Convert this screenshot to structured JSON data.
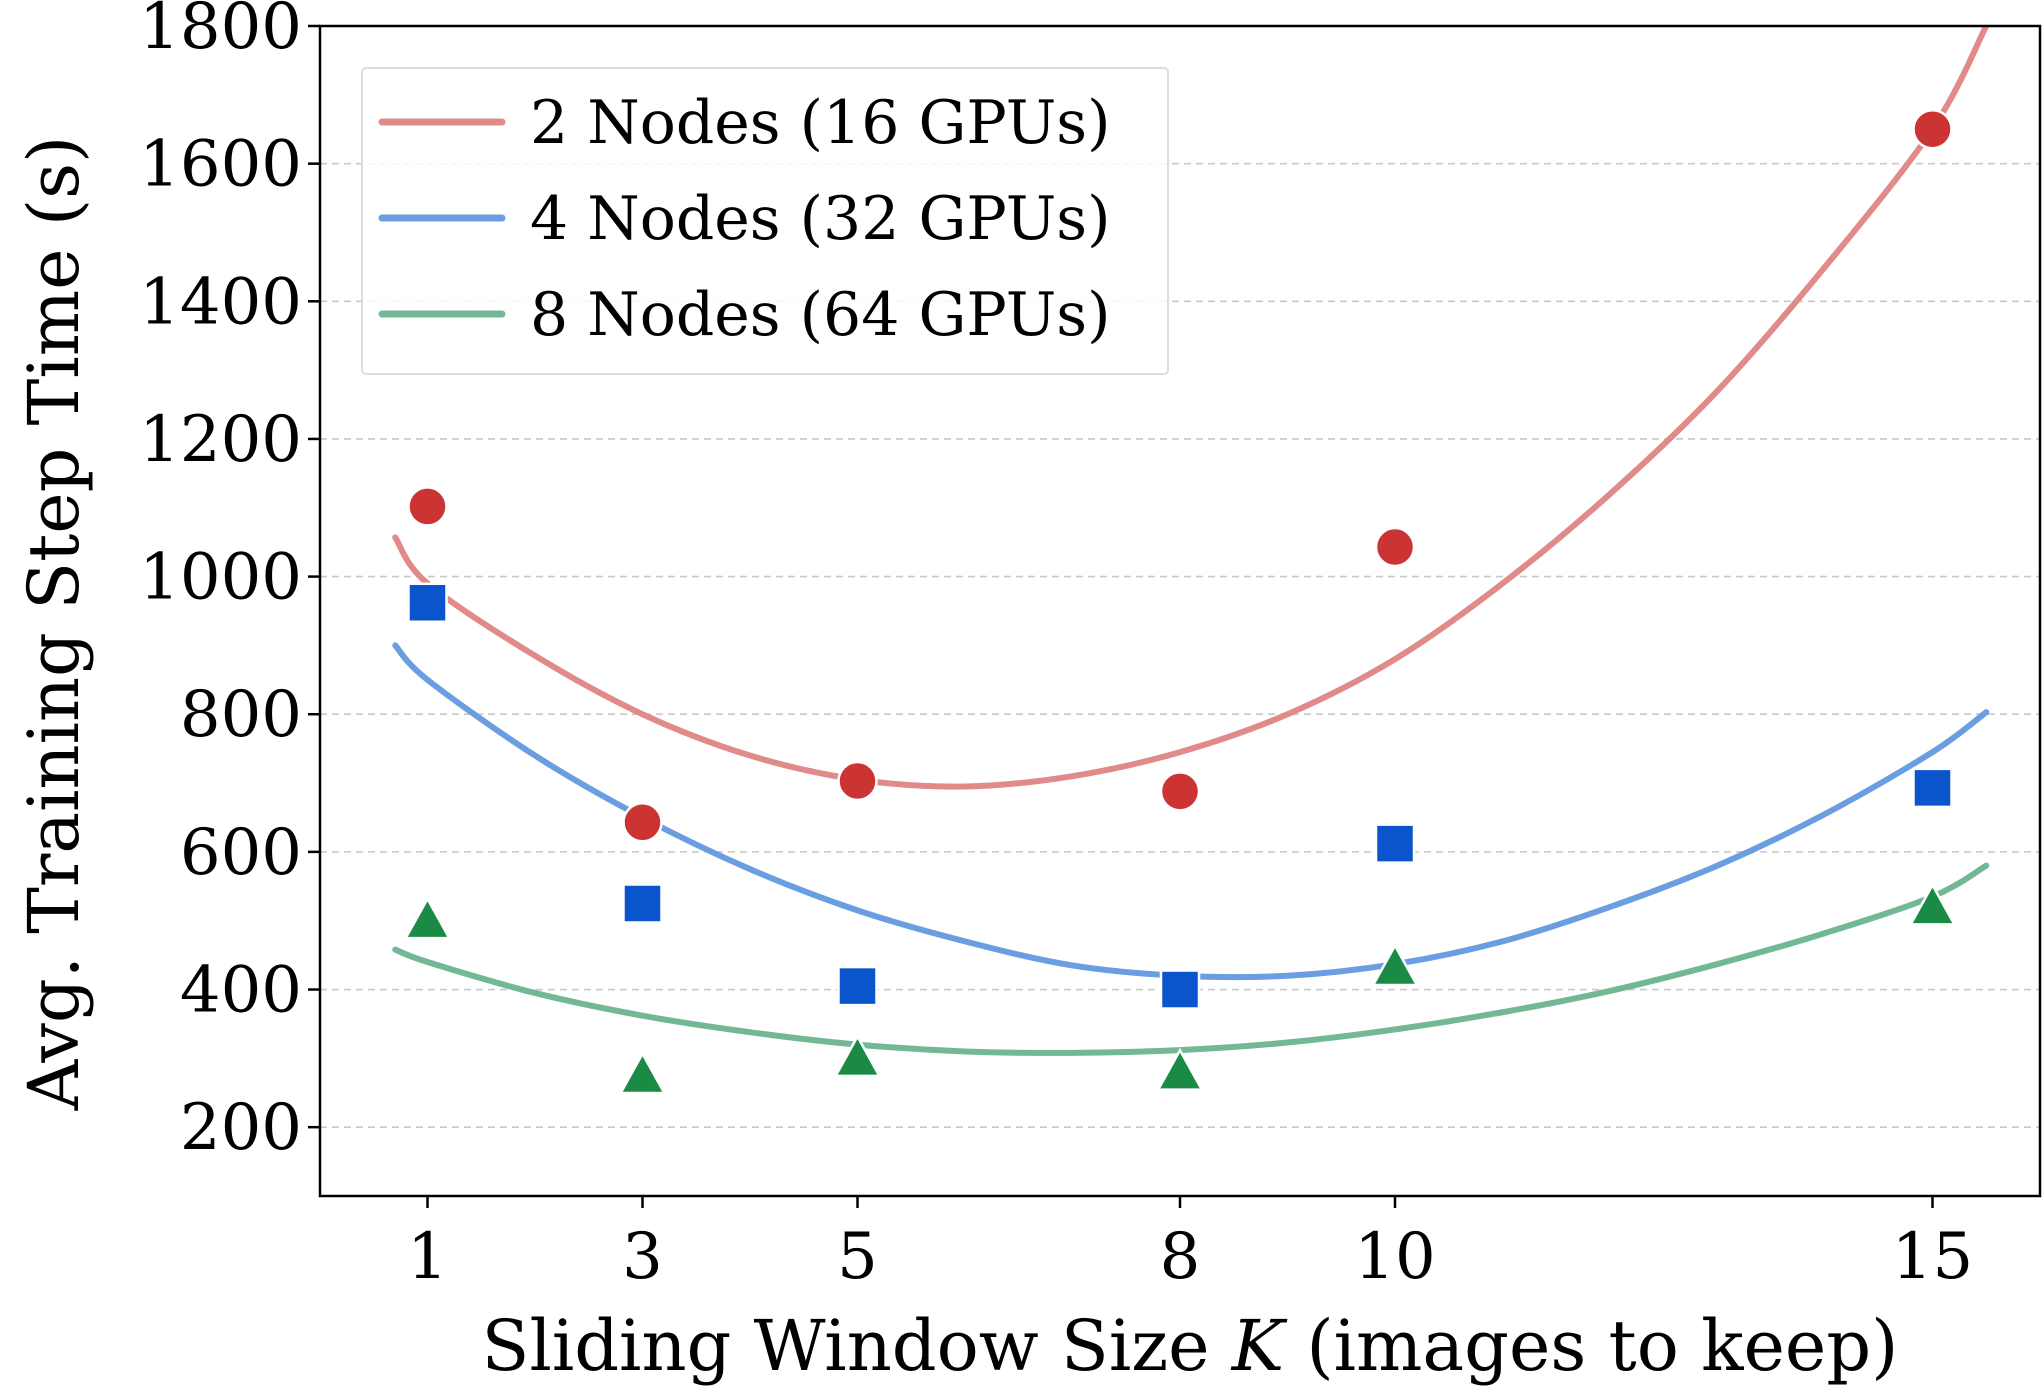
{
  "chart_data": {
    "type": "scatter",
    "xlabel_prefix": "Sliding Window Size ",
    "xlabel_var": "K",
    "xlabel_suffix": " (images to keep)",
    "ylabel": "Avg. Training Step Time (s)",
    "x_ticks": [
      1,
      3,
      5,
      8,
      10,
      15
    ],
    "x_tick_labels": [
      "1",
      "3",
      "5",
      "8",
      "10",
      "15"
    ],
    "y_ticks": [
      200,
      400,
      600,
      800,
      1000,
      1200,
      1400,
      1600,
      1800
    ],
    "y_tick_labels": [
      "200",
      "400",
      "600",
      "800",
      "1000",
      "1200",
      "1400",
      "1600",
      "1800"
    ],
    "xlim": [
      0,
      16
    ],
    "ylim": [
      100,
      1800
    ],
    "grid": "horizontal dashed",
    "legend_position": "top-left",
    "series": [
      {
        "name": "2 Nodes (16 GPUs)",
        "marker": "circle",
        "marker_color": "#cc3333",
        "line_color": "#e08a8a",
        "x": [
          1,
          3,
          5,
          8,
          10,
          15
        ],
        "y": [
          1102,
          643,
          703,
          688,
          1043,
          1650
        ],
        "fit_curve": {
          "x": [
            0.7,
            1,
            2,
            3,
            4,
            5,
            6,
            7,
            8,
            9,
            10,
            11,
            12,
            13,
            14,
            15,
            15.5
          ],
          "y": [
            1057,
            990,
            885,
            800,
            740,
            705,
            695,
            710,
            745,
            800,
            880,
            990,
            1120,
            1270,
            1450,
            1650,
            1800
          ]
        }
      },
      {
        "name": "4 Nodes (32 GPUs)",
        "marker": "square",
        "marker_color": "#0a55cc",
        "line_color": "#6a9ee0",
        "x": [
          1,
          3,
          5,
          8,
          10,
          15
        ],
        "y": [
          962,
          525,
          405,
          400,
          612,
          693
        ],
        "fit_curve": {
          "x": [
            0.7,
            1,
            2,
            3,
            4,
            5,
            6,
            7,
            8,
            9,
            10,
            11,
            12,
            13,
            14,
            15,
            15.5
          ],
          "y": [
            900,
            850,
            740,
            650,
            575,
            515,
            470,
            435,
            420,
            420,
            437,
            470,
            520,
            580,
            655,
            745,
            803
          ]
        }
      },
      {
        "name": "8 Nodes (64 GPUs)",
        "marker": "triangle",
        "marker_color": "#1a8a45",
        "line_color": "#72b894",
        "x": [
          1,
          3,
          5,
          8,
          10,
          15
        ],
        "y": [
          500,
          275,
          300,
          280,
          432,
          520
        ],
        "fit_curve": {
          "x": [
            0.7,
            1,
            2,
            3,
            4,
            5,
            6,
            7,
            8,
            9,
            10,
            11,
            12,
            13,
            14,
            15,
            15.5
          ],
          "y": [
            458,
            440,
            395,
            362,
            338,
            320,
            310,
            308,
            312,
            323,
            342,
            367,
            398,
            437,
            482,
            535,
            580
          ]
        }
      }
    ]
  }
}
